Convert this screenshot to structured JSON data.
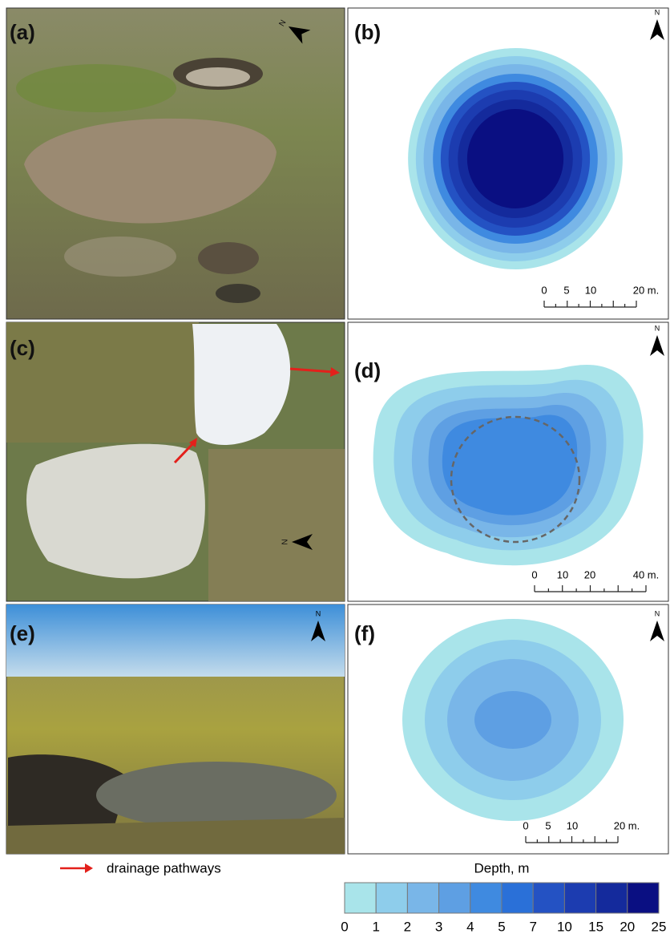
{
  "panels": [
    {
      "label": "(a)"
    },
    {
      "label": "(b)"
    },
    {
      "label": "(c)"
    },
    {
      "label": "(d)"
    },
    {
      "label": "(e)"
    },
    {
      "label": "(f)"
    }
  ],
  "north_label": "N",
  "scale_bars": [
    {
      "labels": [
        "0",
        "5",
        "10",
        "20 m."
      ]
    },
    {
      "labels": [
        "0",
        "10",
        "20",
        "40 m."
      ]
    },
    {
      "labels": [
        "0",
        "5",
        "10",
        "20 m."
      ]
    }
  ],
  "legend": {
    "drainage": "drainage pathways",
    "depth_title": "Depth, m",
    "depth_ticks": [
      0,
      1,
      2,
      3,
      4,
      5,
      7,
      10,
      15,
      20,
      25
    ],
    "colors": [
      "#a9e4ea",
      "#8ecdeb",
      "#79b6e8",
      "#5e9fe3",
      "#3f8ae0",
      "#2a70d8",
      "#2452c3",
      "#1c3cb0",
      "#142a9c",
      "#0a0f82"
    ]
  }
}
